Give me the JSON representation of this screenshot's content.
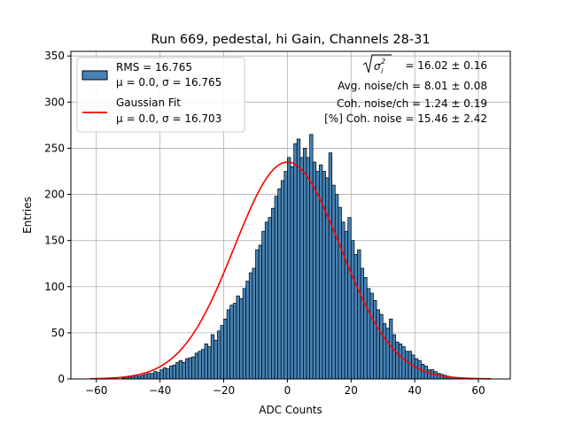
{
  "chart_data": {
    "type": "bar",
    "title": "Run 669, pedestal, hi Gain, Channels 28-31",
    "xlabel": "ADC Counts",
    "ylabel": "Entries",
    "xlim": [
      -68,
      70
    ],
    "ylim": [
      0,
      355
    ],
    "x_ticks": [
      -60,
      -40,
      -20,
      0,
      20,
      40,
      60
    ],
    "y_ticks": [
      0,
      50,
      100,
      150,
      200,
      250,
      300,
      350
    ],
    "grid": true,
    "legend_position": "top-left",
    "colors": {
      "bars": "#4682b4",
      "bar_edge": "#000000",
      "fit": "#ff0000",
      "grid": "#b0b0b0"
    },
    "histogram": {
      "name": "RMS = 16.765",
      "stats_line": "μ = 0.0, σ = 16.765",
      "x_start": -62,
      "bin_width": 1,
      "values": [
        0,
        0,
        0,
        0,
        0,
        0,
        0,
        0,
        0,
        0,
        1,
        2,
        2,
        3,
        4,
        3,
        4,
        5,
        6,
        6,
        8,
        7,
        10,
        12,
        11,
        14,
        15,
        18,
        20,
        18,
        22,
        23,
        24,
        28,
        30,
        32,
        38,
        35,
        48,
        42,
        52,
        58,
        65,
        75,
        80,
        82,
        90,
        87,
        98,
        106,
        115,
        120,
        140,
        145,
        160,
        170,
        175,
        185,
        198,
        206,
        215,
        225,
        240,
        230,
        255,
        260,
        240,
        250,
        240,
        265,
        235,
        225,
        232,
        225,
        218,
        245,
        210,
        200,
        186,
        170,
        160,
        175,
        150,
        135,
        140,
        120,
        110,
        98,
        93,
        85,
        75,
        70,
        60,
        55,
        65,
        48,
        40,
        38,
        35,
        30,
        30,
        26,
        22,
        20,
        16,
        14,
        10,
        10,
        8,
        6,
        5,
        4,
        3,
        2,
        2,
        1,
        1,
        0,
        0,
        0,
        0,
        0
      ]
    },
    "gaussian_fit": {
      "name": "Gaussian Fit",
      "stats_line": "μ = 0.0, σ = 16.703",
      "mu": 0.0,
      "sigma": 16.703,
      "amplitude": 235,
      "x_range": [
        -62,
        64
      ]
    },
    "annotations": [
      {
        "id": "sqrt-sigma",
        "text": "= 16.02 ± 0.16"
      },
      {
        "id": "avg-noise",
        "text": "Avg. noise/ch = 8.01 ± 0.08"
      },
      {
        "id": "coh-noise",
        "text": "Coh. noise/ch = 1.24 ± 0.19"
      },
      {
        "id": "pct-coh",
        "text": "[%] Coh. noise = 15.46 ± 2.42"
      }
    ]
  }
}
